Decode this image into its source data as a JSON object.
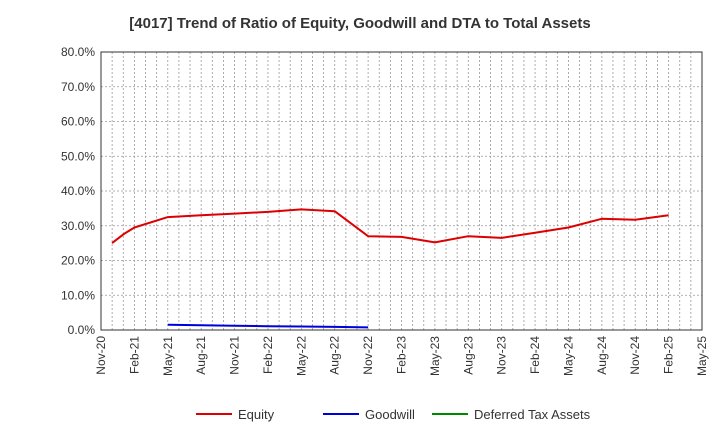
{
  "chart_data": {
    "type": "line",
    "title": "[4017]  Trend of Ratio of Equity, Goodwill and DTA to Total Assets",
    "xlabel": "",
    "ylabel": "",
    "x_ticks": [
      "Nov-20",
      "Feb-21",
      "May-21",
      "Aug-21",
      "Nov-21",
      "Feb-22",
      "May-22",
      "Aug-22",
      "Nov-22",
      "Feb-23",
      "May-23",
      "Aug-23",
      "Nov-23",
      "Feb-24",
      "May-24",
      "Aug-24",
      "Nov-24",
      "Feb-25",
      "May-25"
    ],
    "y_ticks": [
      "0.0%",
      "10.0%",
      "20.0%",
      "30.0%",
      "40.0%",
      "50.0%",
      "60.0%",
      "70.0%",
      "80.0%"
    ],
    "ylim": [
      0,
      80
    ],
    "grid": true,
    "legend_position": "bottom",
    "series": [
      {
        "name": "Equity",
        "color": "#dd0000",
        "x": [
          "Dec-20",
          "Jan-21",
          "Feb-21",
          "May-21",
          "Aug-21",
          "Nov-21",
          "Feb-22",
          "May-22",
          "Aug-22",
          "Nov-22",
          "Feb-23",
          "May-23",
          "Aug-23",
          "Nov-23",
          "Feb-24",
          "May-24",
          "Aug-24",
          "Nov-24",
          "Feb-25"
        ],
        "values": [
          25.0,
          27.5,
          29.5,
          32.5,
          33.0,
          33.5,
          34.0,
          34.7,
          34.2,
          27.0,
          26.8,
          25.2,
          27.0,
          26.5,
          28.0,
          29.5,
          32.0,
          31.7,
          33.0
        ]
      },
      {
        "name": "Goodwill",
        "color": "#0000dd",
        "x": [
          "May-21",
          "Aug-21",
          "Nov-21",
          "Feb-22",
          "May-22",
          "Aug-22",
          "Nov-22"
        ],
        "values": [
          1.5,
          1.35,
          1.2,
          1.1,
          1.0,
          0.9,
          0.75
        ]
      },
      {
        "name": "Deferred Tax Assets",
        "color": "#008800",
        "x": [],
        "values": []
      }
    ]
  }
}
